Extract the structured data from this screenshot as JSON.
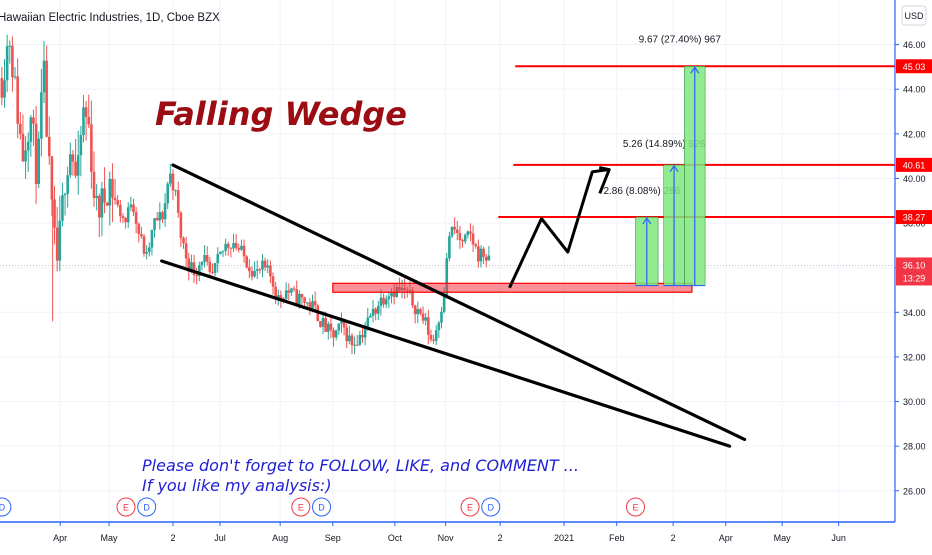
{
  "header": {
    "symbol_title": "Hawaiian Electric Industries, 1D, Cboe BZX",
    "currency_button": "USD"
  },
  "annotations": {
    "pattern_title": "Falling Wedge",
    "footer_line1": "Please don't forget to FOLLOW, LIKE, and COMMENT ...",
    "footer_line2": "If you like my analysis:)",
    "target_labels": [
      {
        "text": "2.86 (8.08%) 286",
        "target": 38.27
      },
      {
        "text": "5.26 (14.89%) 526",
        "target": 40.61
      },
      {
        "text": "9.67 (27.40%) 967",
        "target": 45.03
      }
    ]
  },
  "colors": {
    "up": "#26a69a",
    "down": "#ef5350",
    "level_line": "#ff0000",
    "target_fill": "#7ee87e",
    "wedge_line": "#000000",
    "axis_text": "#131722",
    "footer_text": "#1f1fd6",
    "title_text": "#9b0d12",
    "current_price": "#f23645",
    "event_earnings": "#f23645",
    "event_dividend": "#2962ff"
  },
  "chart_data": {
    "type": "candlestick",
    "title": "Hawaiian Electric Industries, 1D, Cboe BZX",
    "currency": "USD",
    "ylim": [
      24.6,
      48.0
    ],
    "y_ticks": [
      26.0,
      28.0,
      30.0,
      32.0,
      34.0,
      36.0,
      38.0,
      40.0,
      42.0,
      44.0,
      46.0
    ],
    "x_ticks": [
      "Apr",
      "May",
      "2",
      "Jul",
      "Aug",
      "Sep",
      "Oct",
      "Nov",
      "2",
      "2021",
      "Feb",
      "2",
      "Apr",
      "May",
      "Jun"
    ],
    "x_tick_days": [
      0,
      26,
      60,
      85,
      117,
      145,
      178,
      205,
      234,
      268,
      296,
      326,
      354,
      384,
      414
    ],
    "x_range_days": [
      -32,
      444
    ],
    "price_path": [
      [
        -31,
        44.5
      ],
      [
        -27,
        46.5
      ],
      [
        -24,
        44.0
      ],
      [
        -20,
        41.0
      ],
      [
        -16,
        43.0
      ],
      [
        -12,
        40.0
      ],
      [
        -9,
        45.0
      ],
      [
        -5,
        39.0
      ],
      [
        -2,
        36.0
      ],
      [
        0,
        37.5
      ],
      [
        3,
        40.5
      ],
      [
        6,
        41.5
      ],
      [
        9,
        39.5
      ],
      [
        12,
        43.0
      ],
      [
        15,
        42.5
      ],
      [
        19,
        38.5
      ],
      [
        23,
        39.0
      ],
      [
        26,
        40.0
      ],
      [
        30,
        38.8
      ],
      [
        35,
        38.0
      ],
      [
        38,
        39.2
      ],
      [
        42,
        37.5
      ],
      [
        46,
        36.4
      ],
      [
        50,
        38.0
      ],
      [
        55,
        38.4
      ],
      [
        58,
        40.3
      ],
      [
        61,
        39.5
      ],
      [
        64,
        37.5
      ],
      [
        68,
        36.2
      ],
      [
        72,
        35.8
      ],
      [
        76,
        36.6
      ],
      [
        80,
        35.4
      ],
      [
        84,
        36.3
      ],
      [
        88,
        37.0
      ],
      [
        92,
        37.2
      ],
      [
        96,
        36.7
      ],
      [
        100,
        36.2
      ],
      [
        104,
        35.7
      ],
      [
        108,
        36.0
      ],
      [
        112,
        35.6
      ],
      [
        116,
        34.6
      ],
      [
        120,
        35.0
      ],
      [
        125,
        34.7
      ],
      [
        130,
        34.5
      ],
      [
        135,
        34.2
      ],
      [
        140,
        33.4
      ],
      [
        145,
        32.9
      ],
      [
        150,
        33.4
      ],
      [
        155,
        32.6
      ],
      [
        160,
        33.0
      ],
      [
        165,
        33.8
      ],
      [
        170,
        34.5
      ],
      [
        175,
        35.0
      ],
      [
        180,
        35.0
      ],
      [
        185,
        34.8
      ],
      [
        190,
        34.1
      ],
      [
        194,
        33.6
      ],
      [
        198,
        32.6
      ],
      [
        201,
        33.6
      ],
      [
        204,
        34.8
      ],
      [
        207,
        37.5
      ],
      [
        210,
        37.7
      ],
      [
        214,
        37.0
      ],
      [
        218,
        37.5
      ],
      [
        222,
        36.6
      ],
      [
        226,
        36.6
      ],
      [
        229,
        36.0
      ]
    ],
    "price_levels": [
      {
        "value": 38.27,
        "label": "38.27"
      },
      {
        "value": 40.61,
        "label": "40.61"
      },
      {
        "value": 45.03,
        "label": "45.03"
      }
    ],
    "support_zone": {
      "low": 34.9,
      "high": 35.3,
      "start_day": 145,
      "end_day": 336
    },
    "current_price": {
      "value": 36.1,
      "label": "36.10",
      "countdown": "13:29"
    },
    "wedge": {
      "upper": [
        [
          60,
          40.6
        ],
        [
          364,
          28.3
        ]
      ],
      "lower": [
        [
          54,
          36.3
        ],
        [
          356,
          28.0
        ]
      ]
    },
    "projection_path": [
      [
        239,
        35.1
      ],
      [
        256,
        38.2
      ],
      [
        270,
        36.7
      ],
      [
        283,
        40.3
      ],
      [
        292,
        40.4
      ],
      [
        287,
        39.6
      ]
    ],
    "targets": [
      {
        "start_day": 306,
        "end_day": 318,
        "base": 35.2,
        "top": 38.27,
        "label": "2.86 (8.08%) 286"
      },
      {
        "start_day": 321,
        "end_day": 332,
        "base": 35.2,
        "top": 40.61,
        "label": "5.26 (14.89%) 526"
      },
      {
        "start_day": 332,
        "end_day": 343,
        "base": 35.2,
        "top": 45.03,
        "label": "9.67 (27.40%) 967"
      }
    ],
    "events": [
      {
        "day": -31,
        "kind": "D",
        "label": "D"
      },
      {
        "day": 35,
        "kind": "E",
        "label": "E"
      },
      {
        "day": 46,
        "kind": "D",
        "label": "D"
      },
      {
        "day": 128,
        "kind": "E",
        "label": "E"
      },
      {
        "day": 139,
        "kind": "D",
        "label": "D"
      },
      {
        "day": 218,
        "kind": "E",
        "label": "E"
      },
      {
        "day": 229,
        "kind": "D",
        "label": "D"
      },
      {
        "day": 306,
        "kind": "E",
        "label": "E"
      }
    ]
  }
}
